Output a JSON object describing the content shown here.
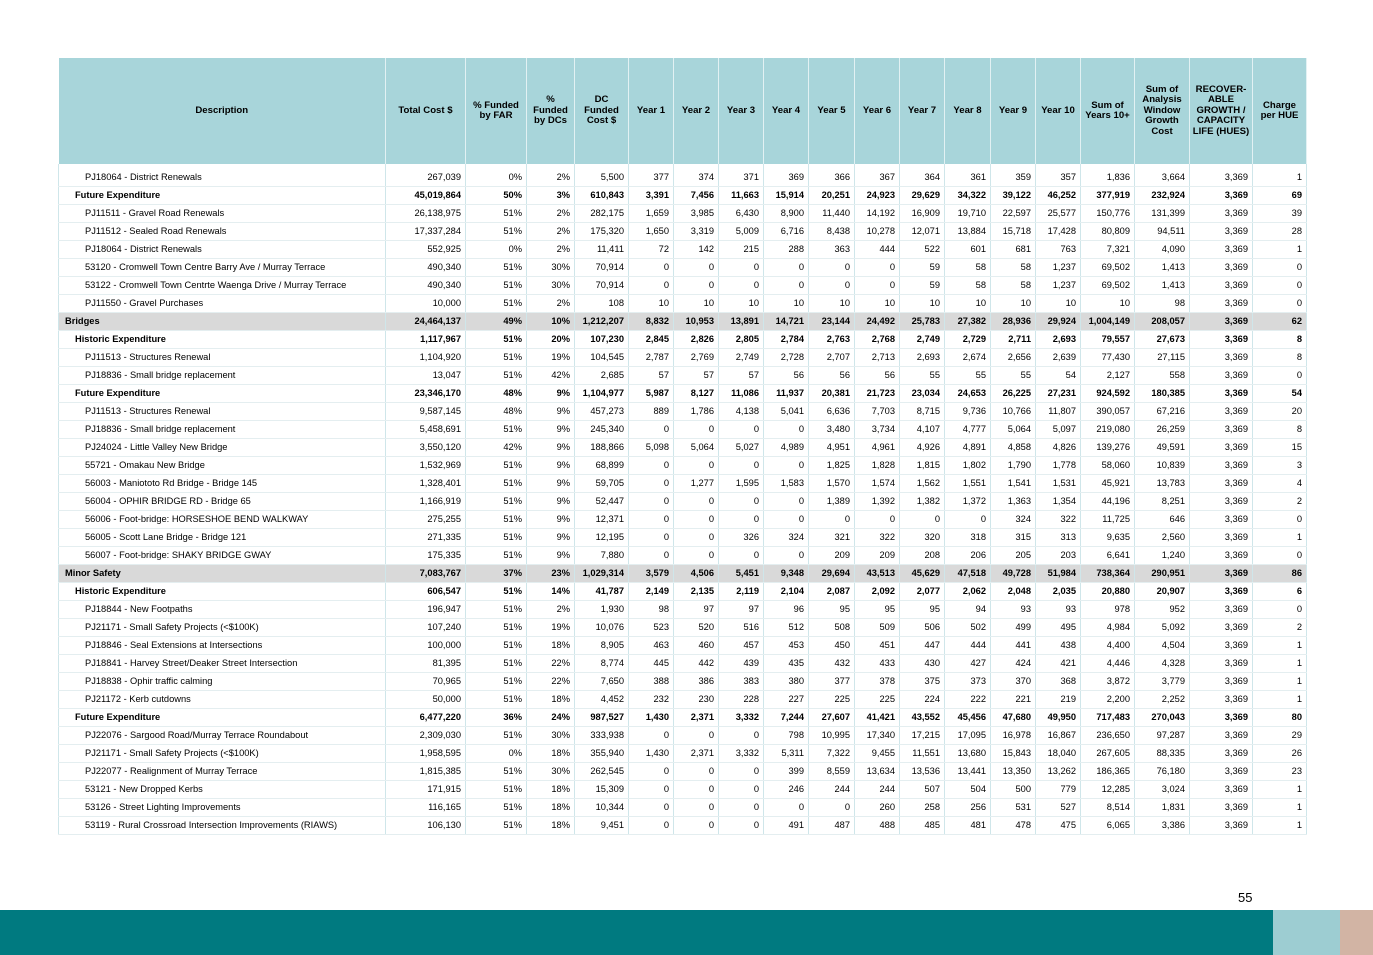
{
  "table": {
    "headers": [
      "Description",
      "Total Cost $",
      "% Funded by FAR",
      "% Funded by DCs",
      "DC Funded Cost $",
      "Year 1",
      "Year 2",
      "Year 3",
      "Year 4",
      "Year 5",
      "Year 6",
      "Year 7",
      "Year 8",
      "Year 9",
      "Year 10",
      "Sum of Years 10+",
      "Sum of Analysis Window Growth Cost",
      "RECOVER-ABLE GROWTH / CAPACITY LIFE (HUES)",
      "Charge per HUE"
    ],
    "rows": [
      {
        "type": "item",
        "cells": [
          "PJ18064 - District Renewals",
          "267,039",
          "0%",
          "2%",
          "5,500",
          "377",
          "374",
          "371",
          "369",
          "366",
          "367",
          "364",
          "361",
          "359",
          "357",
          "1,836",
          "3,664",
          "3,369",
          "1"
        ]
      },
      {
        "type": "sub",
        "cells": [
          "Future Expenditure",
          "45,019,864",
          "50%",
          "3%",
          "610,843",
          "3,391",
          "7,456",
          "11,663",
          "15,914",
          "20,251",
          "24,923",
          "29,629",
          "34,322",
          "39,122",
          "46,252",
          "377,919",
          "232,924",
          "3,369",
          "69"
        ]
      },
      {
        "type": "item",
        "cells": [
          "PJ11511 - Gravel Road Renewals",
          "26,138,975",
          "51%",
          "2%",
          "282,175",
          "1,659",
          "3,985",
          "6,430",
          "8,900",
          "11,440",
          "14,192",
          "16,909",
          "19,710",
          "22,597",
          "25,577",
          "150,776",
          "131,399",
          "3,369",
          "39"
        ]
      },
      {
        "type": "item",
        "cells": [
          "PJ11512 - Sealed Road Renewals",
          "17,337,284",
          "51%",
          "2%",
          "175,320",
          "1,650",
          "3,319",
          "5,009",
          "6,716",
          "8,438",
          "10,278",
          "12,071",
          "13,884",
          "15,718",
          "17,428",
          "80,809",
          "94,511",
          "3,369",
          "28"
        ]
      },
      {
        "type": "item",
        "cells": [
          "PJ18064 - District Renewals",
          "552,925",
          "0%",
          "2%",
          "11,411",
          "72",
          "142",
          "215",
          "288",
          "363",
          "444",
          "522",
          "601",
          "681",
          "763",
          "7,321",
          "4,090",
          "3,369",
          "1"
        ]
      },
      {
        "type": "item",
        "cells": [
          "53120 - Cromwell Town Centre Barry Ave / Murray Terrace",
          "490,340",
          "51%",
          "30%",
          "70,914",
          "0",
          "0",
          "0",
          "0",
          "0",
          "0",
          "59",
          "58",
          "58",
          "1,237",
          "69,502",
          "1,413",
          "3,369",
          "0"
        ]
      },
      {
        "type": "item",
        "cells": [
          "53122 - Cromwell Town Centrte Waenga Drive / Murray Terrace",
          "490,340",
          "51%",
          "30%",
          "70,914",
          "0",
          "0",
          "0",
          "0",
          "0",
          "0",
          "59",
          "58",
          "58",
          "1,237",
          "69,502",
          "1,413",
          "3,369",
          "0"
        ]
      },
      {
        "type": "item",
        "cells": [
          "PJ11550 - Gravel Purchases",
          "10,000",
          "51%",
          "2%",
          "108",
          "10",
          "10",
          "10",
          "10",
          "10",
          "10",
          "10",
          "10",
          "10",
          "10",
          "10",
          "98",
          "3,369",
          "0"
        ]
      },
      {
        "type": "cat",
        "cells": [
          "Bridges",
          "24,464,137",
          "49%",
          "10%",
          "1,212,207",
          "8,832",
          "10,953",
          "13,891",
          "14,721",
          "23,144",
          "24,492",
          "25,783",
          "27,382",
          "28,936",
          "29,924",
          "1,004,149",
          "208,057",
          "3,369",
          "62"
        ]
      },
      {
        "type": "sub",
        "cells": [
          "Historic Expenditure",
          "1,117,967",
          "51%",
          "20%",
          "107,230",
          "2,845",
          "2,826",
          "2,805",
          "2,784",
          "2,763",
          "2,768",
          "2,749",
          "2,729",
          "2,711",
          "2,693",
          "79,557",
          "27,673",
          "3,369",
          "8"
        ]
      },
      {
        "type": "item",
        "cells": [
          "PJ11513 - Structures Renewal",
          "1,104,920",
          "51%",
          "19%",
          "104,545",
          "2,787",
          "2,769",
          "2,749",
          "2,728",
          "2,707",
          "2,713",
          "2,693",
          "2,674",
          "2,656",
          "2,639",
          "77,430",
          "27,115",
          "3,369",
          "8"
        ]
      },
      {
        "type": "item",
        "cells": [
          "PJ18836 - Small bridge replacement",
          "13,047",
          "51%",
          "42%",
          "2,685",
          "57",
          "57",
          "57",
          "56",
          "56",
          "56",
          "55",
          "55",
          "55",
          "54",
          "2,127",
          "558",
          "3,369",
          "0"
        ]
      },
      {
        "type": "sub",
        "cells": [
          "Future Expenditure",
          "23,346,170",
          "48%",
          "9%",
          "1,104,977",
          "5,987",
          "8,127",
          "11,086",
          "11,937",
          "20,381",
          "21,723",
          "23,034",
          "24,653",
          "26,225",
          "27,231",
          "924,592",
          "180,385",
          "3,369",
          "54"
        ]
      },
      {
        "type": "item",
        "cells": [
          "PJ11513 - Structures Renewal",
          "9,587,145",
          "48%",
          "9%",
          "457,273",
          "889",
          "1,786",
          "4,138",
          "5,041",
          "6,636",
          "7,703",
          "8,715",
          "9,736",
          "10,766",
          "11,807",
          "390,057",
          "67,216",
          "3,369",
          "20"
        ]
      },
      {
        "type": "item",
        "cells": [
          "PJ18836 - Small bridge replacement",
          "5,458,691",
          "51%",
          "9%",
          "245,340",
          "0",
          "0",
          "0",
          "0",
          "3,480",
          "3,734",
          "4,107",
          "4,777",
          "5,064",
          "5,097",
          "219,080",
          "26,259",
          "3,369",
          "8"
        ]
      },
      {
        "type": "item",
        "cells": [
          "PJ24024 - Little Valley New Bridge",
          "3,550,120",
          "42%",
          "9%",
          "188,866",
          "5,098",
          "5,064",
          "5,027",
          "4,989",
          "4,951",
          "4,961",
          "4,926",
          "4,891",
          "4,858",
          "4,826",
          "139,276",
          "49,591",
          "3,369",
          "15"
        ]
      },
      {
        "type": "item",
        "cells": [
          "55721 - Omakau New Bridge",
          "1,532,969",
          "51%",
          "9%",
          "68,899",
          "0",
          "0",
          "0",
          "0",
          "1,825",
          "1,828",
          "1,815",
          "1,802",
          "1,790",
          "1,778",
          "58,060",
          "10,839",
          "3,369",
          "3"
        ]
      },
      {
        "type": "item",
        "cells": [
          "56003 - Maniototo Rd Bridge - Bridge 145",
          "1,328,401",
          "51%",
          "9%",
          "59,705",
          "0",
          "1,277",
          "1,595",
          "1,583",
          "1,570",
          "1,574",
          "1,562",
          "1,551",
          "1,541",
          "1,531",
          "45,921",
          "13,783",
          "3,369",
          "4"
        ]
      },
      {
        "type": "item",
        "cells": [
          "56004 - OPHIR BRIDGE RD - Bridge 65",
          "1,166,919",
          "51%",
          "9%",
          "52,447",
          "0",
          "0",
          "0",
          "0",
          "1,389",
          "1,392",
          "1,382",
          "1,372",
          "1,363",
          "1,354",
          "44,196",
          "8,251",
          "3,369",
          "2"
        ]
      },
      {
        "type": "item",
        "cells": [
          "56006 - Foot-bridge: HORSESHOE BEND WALKWAY",
          "275,255",
          "51%",
          "9%",
          "12,371",
          "0",
          "0",
          "0",
          "0",
          "0",
          "0",
          "0",
          "0",
          "324",
          "322",
          "11,725",
          "646",
          "3,369",
          "0"
        ]
      },
      {
        "type": "item",
        "cells": [
          "56005 - Scott Lane Bridge - Bridge 121",
          "271,335",
          "51%",
          "9%",
          "12,195",
          "0",
          "0",
          "326",
          "324",
          "321",
          "322",
          "320",
          "318",
          "315",
          "313",
          "9,635",
          "2,560",
          "3,369",
          "1"
        ]
      },
      {
        "type": "item",
        "cells": [
          "56007 - Foot-bridge: SHAKY BRIDGE GWAY",
          "175,335",
          "51%",
          "9%",
          "7,880",
          "0",
          "0",
          "0",
          "0",
          "209",
          "209",
          "208",
          "206",
          "205",
          "203",
          "6,641",
          "1,240",
          "3,369",
          "0"
        ]
      },
      {
        "type": "cat",
        "cells": [
          "Minor Safety",
          "7,083,767",
          "37%",
          "23%",
          "1,029,314",
          "3,579",
          "4,506",
          "5,451",
          "9,348",
          "29,694",
          "43,513",
          "45,629",
          "47,518",
          "49,728",
          "51,984",
          "738,364",
          "290,951",
          "3,369",
          "86"
        ]
      },
      {
        "type": "sub",
        "cells": [
          "Historic Expenditure",
          "606,547",
          "51%",
          "14%",
          "41,787",
          "2,149",
          "2,135",
          "2,119",
          "2,104",
          "2,087",
          "2,092",
          "2,077",
          "2,062",
          "2,048",
          "2,035",
          "20,880",
          "20,907",
          "3,369",
          "6"
        ]
      },
      {
        "type": "item",
        "cells": [
          "PJ18844 - New Footpaths",
          "196,947",
          "51%",
          "2%",
          "1,930",
          "98",
          "97",
          "97",
          "96",
          "95",
          "95",
          "95",
          "94",
          "93",
          "93",
          "978",
          "952",
          "3,369",
          "0"
        ]
      },
      {
        "type": "item",
        "cells": [
          "PJ21171 - Small Safety Projects (<$100K)",
          "107,240",
          "51%",
          "19%",
          "10,076",
          "523",
          "520",
          "516",
          "512",
          "508",
          "509",
          "506",
          "502",
          "499",
          "495",
          "4,984",
          "5,092",
          "3,369",
          "2"
        ]
      },
      {
        "type": "item",
        "cells": [
          "PJ18846 - Seal Extensions at Intersections",
          "100,000",
          "51%",
          "18%",
          "8,905",
          "463",
          "460",
          "457",
          "453",
          "450",
          "451",
          "447",
          "444",
          "441",
          "438",
          "4,400",
          "4,504",
          "3,369",
          "1"
        ]
      },
      {
        "type": "item",
        "cells": [
          "PJ18841 - Harvey Street/Deaker Street Intersection",
          "81,395",
          "51%",
          "22%",
          "8,774",
          "445",
          "442",
          "439",
          "435",
          "432",
          "433",
          "430",
          "427",
          "424",
          "421",
          "4,446",
          "4,328",
          "3,369",
          "1"
        ]
      },
      {
        "type": "item",
        "cells": [
          "PJ18838 - Ophir traffic calming",
          "70,965",
          "51%",
          "22%",
          "7,650",
          "388",
          "386",
          "383",
          "380",
          "377",
          "378",
          "375",
          "373",
          "370",
          "368",
          "3,872",
          "3,779",
          "3,369",
          "1"
        ]
      },
      {
        "type": "item",
        "cells": [
          "PJ21172 - Kerb cutdowns",
          "50,000",
          "51%",
          "18%",
          "4,452",
          "232",
          "230",
          "228",
          "227",
          "225",
          "225",
          "224",
          "222",
          "221",
          "219",
          "2,200",
          "2,252",
          "3,369",
          "1"
        ]
      },
      {
        "type": "sub",
        "cells": [
          "Future Expenditure",
          "6,477,220",
          "36%",
          "24%",
          "987,527",
          "1,430",
          "2,371",
          "3,332",
          "7,244",
          "27,607",
          "41,421",
          "43,552",
          "45,456",
          "47,680",
          "49,950",
          "717,483",
          "270,043",
          "3,369",
          "80"
        ]
      },
      {
        "type": "item",
        "cells": [
          "PJ22076 - Sargood Road/Murray Terrace Roundabout",
          "2,309,030",
          "51%",
          "30%",
          "333,938",
          "0",
          "0",
          "0",
          "798",
          "10,995",
          "17,340",
          "17,215",
          "17,095",
          "16,978",
          "16,867",
          "236,650",
          "97,287",
          "3,369",
          "29"
        ]
      },
      {
        "type": "item",
        "cells": [
          "PJ21171 - Small Safety Projects (<$100K)",
          "1,958,595",
          "0%",
          "18%",
          "355,940",
          "1,430",
          "2,371",
          "3,332",
          "5,311",
          "7,322",
          "9,455",
          "11,551",
          "13,680",
          "15,843",
          "18,040",
          "267,605",
          "88,335",
          "3,369",
          "26"
        ]
      },
      {
        "type": "item",
        "cells": [
          "PJ22077 - Realignment of Murray Terrace",
          "1,815,385",
          "51%",
          "30%",
          "262,545",
          "0",
          "0",
          "0",
          "399",
          "8,559",
          "13,634",
          "13,536",
          "13,441",
          "13,350",
          "13,262",
          "186,365",
          "76,180",
          "3,369",
          "23"
        ]
      },
      {
        "type": "item",
        "cells": [
          "53121 - New Dropped Kerbs",
          "171,915",
          "51%",
          "18%",
          "15,309",
          "0",
          "0",
          "0",
          "246",
          "244",
          "244",
          "507",
          "504",
          "500",
          "779",
          "12,285",
          "3,024",
          "3,369",
          "1"
        ]
      },
      {
        "type": "item",
        "cells": [
          "53126 - Street Lighting Improvements",
          "116,165",
          "51%",
          "18%",
          "10,344",
          "0",
          "0",
          "0",
          "0",
          "0",
          "260",
          "258",
          "256",
          "531",
          "527",
          "8,514",
          "1,831",
          "3,369",
          "1"
        ]
      },
      {
        "type": "item",
        "cells": [
          "53119 - Rural Crossroad Intersection Improvements (RIAWS)",
          "106,130",
          "51%",
          "18%",
          "9,451",
          "0",
          "0",
          "0",
          "491",
          "487",
          "488",
          "485",
          "481",
          "478",
          "475",
          "6,065",
          "3,386",
          "3,369",
          "1"
        ]
      }
    ]
  },
  "page_number": "55",
  "colors": {
    "header_bg": "#a8d5da",
    "category_row_bg": "#d9d9d9",
    "footer_teal": "#007a80",
    "footer_light": "#9dcdd2",
    "footer_tan": "#d2b4a4"
  }
}
